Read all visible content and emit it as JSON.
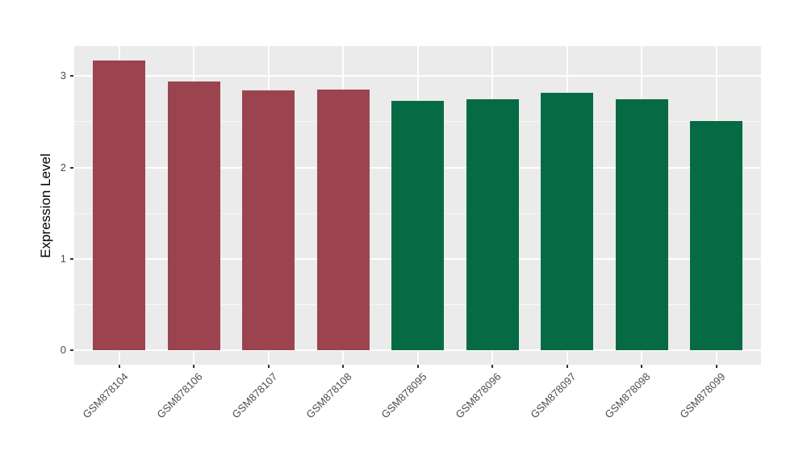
{
  "chart_data": {
    "type": "bar",
    "title": "",
    "xlabel": "",
    "ylabel": "Expression Level",
    "categories": [
      "GSM878104",
      "GSM878106",
      "GSM878107",
      "GSM878108",
      "GSM878095",
      "GSM878096",
      "GSM878097",
      "GSM878098",
      "GSM878099"
    ],
    "values": [
      3.17,
      2.94,
      2.84,
      2.85,
      2.73,
      2.75,
      2.82,
      2.75,
      2.51
    ],
    "bar_groups": [
      "red",
      "red",
      "red",
      "red",
      "green",
      "green",
      "green",
      "green",
      "green"
    ],
    "group_colors": {
      "red": "#9B4450",
      "green": "#066B45"
    },
    "y_ticks": [
      0,
      1,
      2,
      3
    ],
    "y_minor_ticks": [
      0.5,
      1.5,
      2.5
    ],
    "ylim": [
      -0.16,
      3.33
    ],
    "x_tick_angle": 45,
    "legend": "none",
    "grid": "on",
    "panel_bg": "#EBEBEB",
    "grid_color": "#FFFFFF",
    "axis_text_color": "#4D4D4D",
    "tick_mark_color": "#333333",
    "axis_title_color": "#000000"
  }
}
